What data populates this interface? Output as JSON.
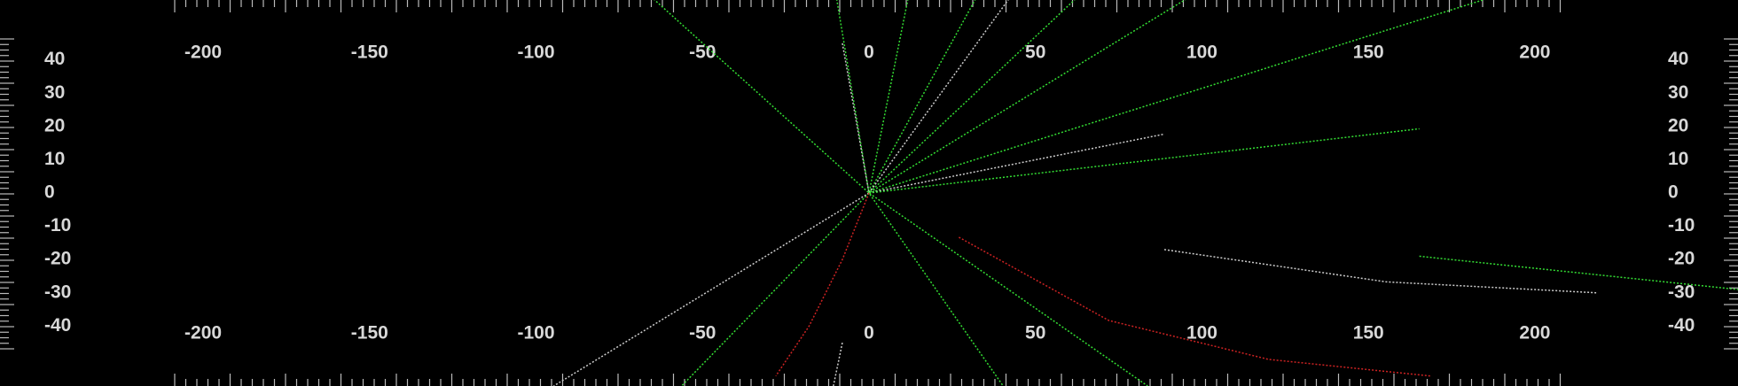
{
  "chart_data": {
    "type": "line",
    "xlim": [
      -261,
      261
    ],
    "ylim": [
      -58,
      58
    ],
    "xticks": [
      -200,
      -150,
      -100,
      -50,
      0,
      50,
      100,
      150,
      200
    ],
    "yticks": [
      40,
      30,
      20,
      10,
      0,
      -10,
      -20,
      -30,
      -40
    ],
    "grid": false,
    "series": [
      {
        "color": "#33dd33",
        "x": [
          -64.7,
          0,
          83.7
        ],
        "y": [
          58.3,
          0,
          -58
        ]
      },
      {
        "color": "#33dd33",
        "x": [
          -9.7,
          0,
          40.3
        ],
        "y": [
          58.3,
          0,
          -58
        ]
      },
      {
        "color": "#cccccc",
        "x": [
          -8,
          0
        ],
        "y": [
          45,
          0
        ]
      },
      {
        "color": "#33dd33",
        "x": [
          11.7,
          0,
          -56.3
        ],
        "y": [
          58.3,
          0,
          -58
        ]
      },
      {
        "color": "#cccccc",
        "x": [
          0,
          -94.7
        ],
        "y": [
          0,
          -58
        ]
      },
      {
        "color": "#33dd33",
        "x": [
          32,
          0
        ],
        "y": [
          58.3,
          0
        ]
      },
      {
        "color": "#cccccc",
        "x": [
          42,
          0
        ],
        "y": [
          58.3,
          0
        ]
      },
      {
        "color": "#33dd33",
        "x": [
          62,
          0
        ],
        "y": [
          58.3,
          0
        ]
      },
      {
        "color": "#33dd33",
        "x": [
          95.3,
          0
        ],
        "y": [
          58.3,
          0
        ]
      },
      {
        "color": "#33dd33",
        "x": [
          185.3,
          0
        ],
        "y": [
          58.3,
          0
        ]
      },
      {
        "color": "#cccccc",
        "x": [
          0,
          88.7
        ],
        "y": [
          0,
          17.7
        ]
      },
      {
        "color": "#33dd33",
        "x": [
          0,
          165.3
        ],
        "y": [
          0,
          19.3
        ]
      },
      {
        "color": "#cc2222",
        "x": [
          0,
          -8,
          -18,
          -28
        ],
        "y": [
          0,
          -20,
          -40,
          -55
        ]
      },
      {
        "color": "#cc2222",
        "x": [
          27,
          72,
          120,
          168.7
        ],
        "y": [
          -13.3,
          -38.3,
          -50,
          -55
        ]
      },
      {
        "color": "#cccccc",
        "x": [
          88.7,
          155.3,
          218.7
        ],
        "y": [
          -17,
          -26.7,
          -30
        ]
      },
      {
        "color": "#33dd33",
        "x": [
          165.3,
          261
        ],
        "y": [
          -19,
          -29
        ]
      },
      {
        "color": "#cccccc",
        "x": [
          -8,
          -10.7
        ],
        "y": [
          -45,
          -58
        ]
      }
    ]
  }
}
